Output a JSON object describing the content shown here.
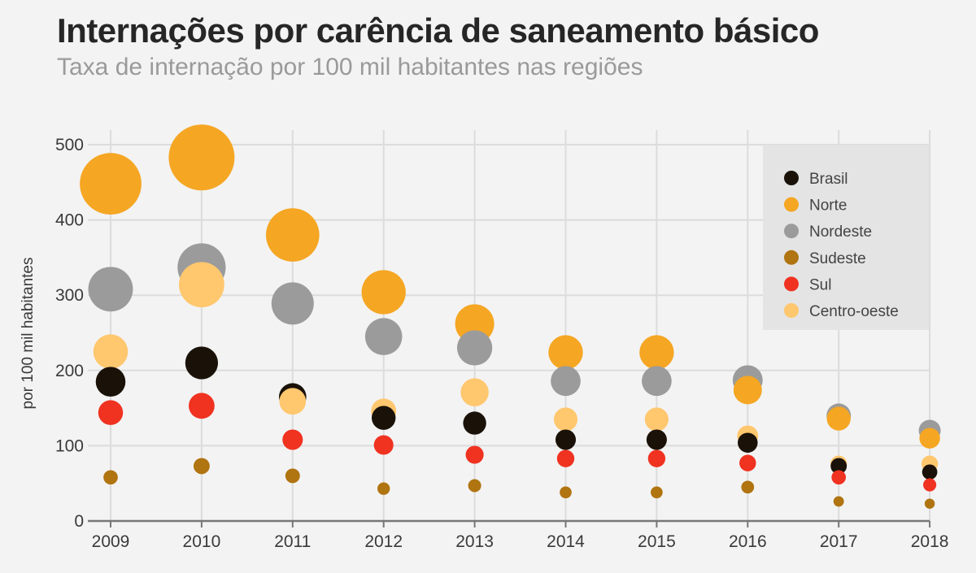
{
  "chart_data": {
    "type": "scatter",
    "title": "Internações por carência de saneamento básico",
    "subtitle": "Taxa de internação por 100 mil habitantes nas regiões",
    "ylabel": "por 100 mil habitantes",
    "xlabel": "",
    "ylim": [
      0,
      500
    ],
    "yticks": [
      0,
      100,
      200,
      300,
      400,
      500
    ],
    "x": [
      "2009",
      "2010",
      "2011",
      "2012",
      "2013",
      "2014",
      "2015",
      "2016",
      "2017",
      "2018"
    ],
    "grid": true,
    "legend_position": "top-right",
    "bubble_size_encodes": "value",
    "series": [
      {
        "name": "Brasil",
        "color": "#1a1209",
        "values": [
          185,
          210,
          165,
          137,
          130,
          108,
          108,
          104,
          73,
          65
        ]
      },
      {
        "name": "Norte",
        "color": "#f5a623",
        "values": [
          448,
          483,
          380,
          304,
          262,
          224,
          224,
          174,
          136,
          110
        ]
      },
      {
        "name": "Nordeste",
        "color": "#9b9b9b",
        "values": [
          308,
          337,
          289,
          245,
          230,
          186,
          186,
          187,
          140,
          120
        ]
      },
      {
        "name": "Sudeste",
        "color": "#b07410",
        "values": [
          58,
          73,
          60,
          43,
          47,
          38,
          38,
          45,
          26,
          23
        ]
      },
      {
        "name": "Sul",
        "color": "#f03221",
        "values": [
          144,
          153,
          108,
          101,
          88,
          83,
          83,
          77,
          58,
          48
        ]
      },
      {
        "name": "Centro-oeste",
        "color": "#ffc76e",
        "values": [
          225,
          314,
          159,
          146,
          171,
          135,
          135,
          113,
          76,
          76
        ]
      }
    ]
  }
}
